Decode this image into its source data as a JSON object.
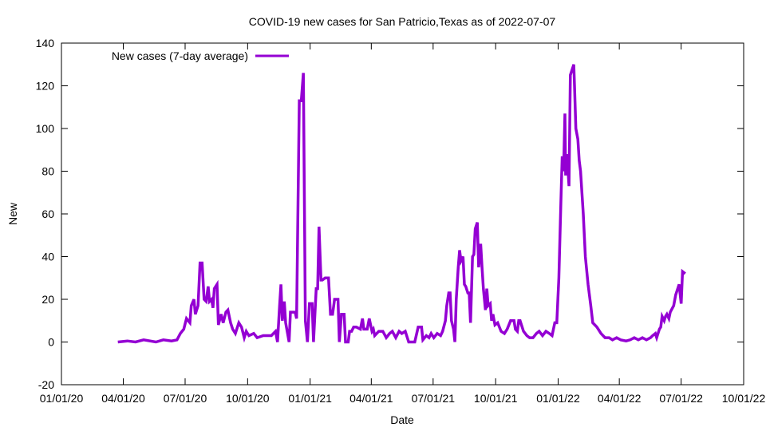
{
  "chart_data": {
    "type": "line",
    "title": "COVID-19 new cases for San Patricio,Texas as of 2022-07-07",
    "xlabel": "Date",
    "ylabel": "New",
    "ylim": [
      -20,
      140
    ],
    "yticks": [
      -20,
      0,
      20,
      40,
      60,
      80,
      100,
      120,
      140
    ],
    "x_epoch": "01/01/20",
    "xlim_days": [
      0,
      1004
    ],
    "xticks": [
      {
        "label": "01/01/20",
        "day": 0
      },
      {
        "label": "04/01/20",
        "day": 91
      },
      {
        "label": "07/01/20",
        "day": 182
      },
      {
        "label": "10/01/20",
        "day": 274
      },
      {
        "label": "01/01/21",
        "day": 366
      },
      {
        "label": "04/01/21",
        "day": 456
      },
      {
        "label": "07/01/21",
        "day": 547
      },
      {
        "label": "10/01/21",
        "day": 639
      },
      {
        "label": "01/01/22",
        "day": 731
      },
      {
        "label": "04/01/22",
        "day": 821
      },
      {
        "label": "07/01/22",
        "day": 912
      },
      {
        "label": "10/01/22",
        "day": 1004
      }
    ],
    "grid": false,
    "legend_position": "top-left",
    "series": [
      {
        "name": "New cases (7-day average)",
        "color": "#9400d3",
        "x": [
          83,
          97,
          109,
          121,
          139,
          150,
          162,
          170,
          175,
          180,
          184,
          189,
          191,
          195,
          197,
          201,
          204,
          207,
          210,
          213,
          216,
          218,
          221,
          223,
          225,
          229,
          231,
          235,
          238,
          242,
          245,
          249,
          252,
          256,
          261,
          265,
          269,
          272,
          276,
          283,
          288,
          297,
          309,
          315,
          318,
          321,
          323,
          325,
          328,
          330,
          335,
          337,
          344,
          346,
          350,
          353,
          356,
          359,
          362,
          365,
          369,
          371,
          375,
          377,
          379,
          382,
          384,
          388,
          393,
          396,
          399,
          402,
          407,
          409,
          412,
          416,
          418,
          422,
          424,
          427,
          430,
          434,
          440,
          443,
          445,
          450,
          453,
          457,
          459,
          461,
          467,
          473,
          478,
          483,
          487,
          492,
          497,
          501,
          506,
          511,
          520,
          525,
          530,
          532,
          537,
          541,
          544,
          548,
          553,
          558,
          561,
          565,
          567,
          570,
          572,
          574,
          577,
          579,
          581,
          584,
          586,
          588,
          591,
          593,
          595,
          598,
          600,
          602,
          605,
          607,
          609,
          612,
          614,
          617,
          619,
          621,
          624,
          626,
          628,
          631,
          633,
          635,
          638,
          642,
          647,
          652,
          656,
          661,
          666,
          668,
          671,
          673,
          675,
          678,
          680,
          685,
          689,
          694,
          699,
          703,
          708,
          713,
          718,
          722,
          726,
          729,
          732,
          735,
          737,
          739,
          741,
          742,
          744,
          747,
          749,
          752,
          754,
          755,
          757,
          760,
          762,
          764,
          768,
          771,
          775,
          779,
          782,
          788,
          794,
          800,
          806,
          811,
          817,
          823,
          831,
          837,
          843,
          849,
          855,
          861,
          867,
          870,
          874,
          876,
          880,
          882,
          884,
          887,
          889,
          891,
          894,
          896,
          901,
          904,
          907,
          909,
          912,
          914,
          918
        ],
        "y": [
          0,
          0.5,
          0,
          1,
          0,
          1,
          0.5,
          1,
          4,
          6,
          11,
          9,
          17,
          20,
          13,
          17,
          37,
          37,
          20,
          19,
          26,
          19,
          20,
          16,
          25,
          27,
          8,
          13,
          9,
          14,
          15,
          9,
          6,
          4,
          9,
          7,
          2,
          5,
          3,
          4,
          2,
          3,
          3,
          5,
          0,
          17,
          27,
          10,
          19,
          9,
          0,
          14,
          14,
          11,
          113,
          113,
          126,
          10,
          0,
          18,
          18,
          0,
          25,
          25,
          54,
          29,
          29,
          30,
          30,
          13,
          13,
          20,
          20,
          0,
          13,
          13,
          0,
          0,
          5,
          5,
          7,
          7,
          6,
          11,
          6,
          6,
          11,
          5,
          6,
          3,
          5,
          5,
          2,
          4,
          5,
          2,
          5,
          4,
          5,
          0,
          0,
          7,
          7,
          1,
          3,
          2,
          4,
          2,
          4,
          3,
          5,
          10,
          17,
          23,
          23,
          10,
          6,
          0,
          20,
          35,
          43,
          38,
          40,
          27,
          26,
          23,
          23,
          9,
          40,
          41,
          53,
          56,
          35,
          46,
          35,
          25,
          15,
          25,
          17,
          18,
          10,
          13,
          8,
          9,
          5,
          4,
          6,
          10,
          10,
          6,
          5,
          10,
          10,
          7,
          5,
          3,
          2,
          2,
          4,
          5,
          3,
          5,
          4,
          3,
          9,
          9,
          30,
          65,
          87,
          80,
          107,
          78,
          88,
          73,
          125,
          128,
          130,
          120,
          100,
          95,
          85,
          80,
          60,
          40,
          27,
          17,
          9,
          7,
          4,
          2,
          2,
          1,
          2,
          1,
          0.5,
          1,
          2,
          1,
          2,
          1,
          2,
          3,
          4,
          2,
          6,
          7,
          12,
          10,
          12,
          13,
          11,
          14,
          17,
          22,
          25,
          27,
          18,
          33,
          32
        ]
      }
    ]
  }
}
